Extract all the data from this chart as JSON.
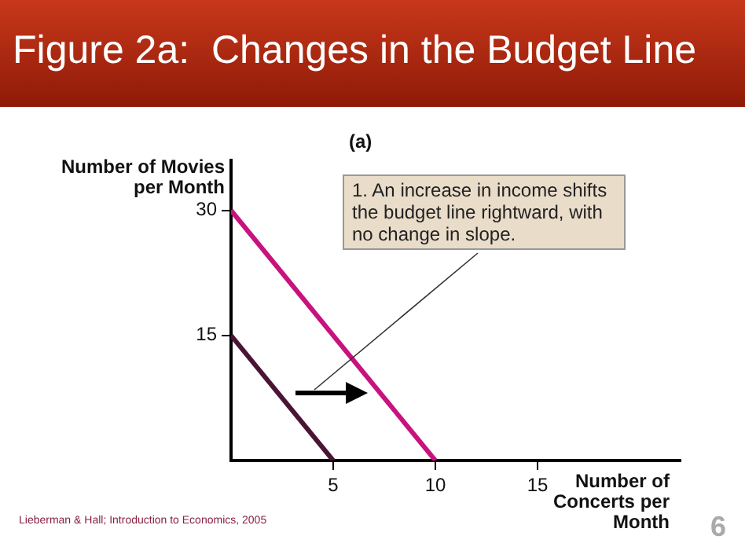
{
  "chart_data": {
    "type": "line",
    "title": "Figure 2a:  Changes in the Budget Line",
    "subtitle": "(a)",
    "xlabel": "Number of Concerts per Month",
    "ylabel": "Number of Movies per Month",
    "series": [
      {
        "color": "#4a1535",
        "x": [
          0,
          5
        ],
        "values": [
          15,
          0
        ]
      },
      {
        "color": "#c8127e",
        "x": [
          0,
          10
        ],
        "values": [
          30,
          0
        ]
      }
    ],
    "xlim": [
      0,
      22
    ],
    "xticks": [
      5,
      10,
      15
    ],
    "ylim": [
      0,
      36
    ],
    "yticks": [
      15,
      30
    ],
    "grid": false,
    "legend": false,
    "marker": "none",
    "line_style": "solid",
    "annotations": [
      "1. An increase in income shifts the budget line rightward, with no change in slope.",
      "Lieberman & Hall; Introduction to Economics, 2005",
      "6"
    ]
  }
}
